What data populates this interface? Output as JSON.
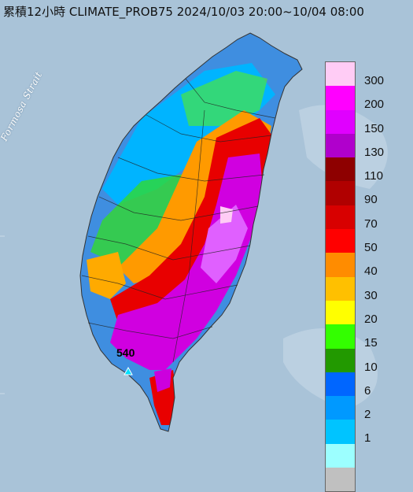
{
  "title": "累積12小時 CLIMATE_PROB75 2024/10/03 20:00~10/04 08:00",
  "sea_label": "Formosa Strait",
  "max_station": {
    "value_label": "540"
  },
  "legend": {
    "colors": [
      "#ffccf5",
      "#ff00ff",
      "#e000ff",
      "#b000cc",
      "#8e0000",
      "#b00000",
      "#d80000",
      "#ff0000",
      "#ff8c00",
      "#ffc000",
      "#ffff00",
      "#33ff00",
      "#229900",
      "#0066ff",
      "#0099ff",
      "#00c4ff",
      "#9cffff",
      "#c0c0c0"
    ],
    "labels": [
      "300",
      "200",
      "150",
      "130",
      "110",
      "90",
      "70",
      "50",
      "40",
      "30",
      "20",
      "15",
      "10",
      "6",
      "2",
      "1"
    ]
  },
  "colors": {
    "sea": "#a9c3d8",
    "land_outline": "#333333"
  }
}
